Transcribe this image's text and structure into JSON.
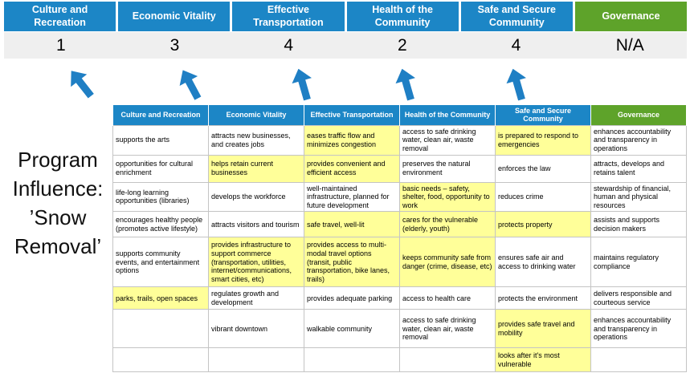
{
  "colors": {
    "blue": "#1c86c6",
    "green": "#5ea32a",
    "highlight": "#ffff99",
    "arrow": "#1f7fc4",
    "score_strip": "#efefef"
  },
  "program_label": {
    "lines": [
      "Program",
      "Influence:",
      "’Snow",
      "Removal’"
    ]
  },
  "scoreboard": {
    "columns": [
      {
        "label": "Culture and Recreation",
        "score": "1",
        "theme": "blue"
      },
      {
        "label": "Economic Vitality",
        "score": "3",
        "theme": "blue"
      },
      {
        "label": "Effective Transportation",
        "score": "4",
        "theme": "blue"
      },
      {
        "label": "Health of the Community",
        "score": "2",
        "theme": "blue"
      },
      {
        "label": "Safe and Secure Community",
        "score": "4",
        "theme": "blue"
      },
      {
        "label": "Governance",
        "score": "N/A",
        "theme": "green"
      }
    ]
  },
  "matrix": {
    "headers": [
      {
        "label": "Culture and Recreation",
        "theme": "blue"
      },
      {
        "label": "Economic Vitality",
        "theme": "blue"
      },
      {
        "label": "Effective Transportation",
        "theme": "blue"
      },
      {
        "label": "Health of the Community",
        "theme": "blue"
      },
      {
        "label": "Safe and Secure Community",
        "theme": "blue"
      },
      {
        "label": "Governance",
        "theme": "green"
      }
    ],
    "rows": [
      [
        {
          "text": "supports the arts",
          "highlight": false
        },
        {
          "text": "attracts new businesses, and creates jobs",
          "highlight": false
        },
        {
          "text": "eases traffic flow and minimizes congestion",
          "highlight": true
        },
        {
          "text": "access to safe drinking water, clean air, waste removal",
          "highlight": false
        },
        {
          "text": "is prepared to respond to emergencies",
          "highlight": true
        },
        {
          "text": "enhances accountability and transparency in operations",
          "highlight": false
        }
      ],
      [
        {
          "text": "opportunities for cultural enrichment",
          "highlight": false
        },
        {
          "text": "helps retain current businesses",
          "highlight": true
        },
        {
          "text": "provides convenient and efficient access",
          "highlight": true
        },
        {
          "text": "preserves the natural environment",
          "highlight": false
        },
        {
          "text": "enforces the law",
          "highlight": false
        },
        {
          "text": "attracts, develops and retains talent",
          "highlight": false
        }
      ],
      [
        {
          "text": "life-long learning opportunities (libraries)",
          "highlight": false
        },
        {
          "text": "develops the workforce",
          "highlight": false
        },
        {
          "text": "well-maintained infrastructure, planned for future development",
          "highlight": false
        },
        {
          "text": "basic needs – safety, shelter, food, opportunity to work",
          "highlight": true
        },
        {
          "text": "reduces crime",
          "highlight": false
        },
        {
          "text": "stewardship of financial, human and physical resources",
          "highlight": false
        }
      ],
      [
        {
          "text": "encourages healthy people (promotes active lifestyle)",
          "highlight": false
        },
        {
          "text": "attracts visitors and tourism",
          "highlight": false
        },
        {
          "text": "safe travel, well-lit",
          "highlight": true
        },
        {
          "text": "cares for the vulnerable (elderly, youth)",
          "highlight": true
        },
        {
          "text": "protects property",
          "highlight": true
        },
        {
          "text": "assists and supports decision makers",
          "highlight": false
        }
      ],
      [
        {
          "text": "supports community events, and entertainment options",
          "highlight": false
        },
        {
          "text": "provides infrastructure to support commerce (transportation, utilities, internet/communications, smart cities, etc)",
          "highlight": true
        },
        {
          "text": "provides access to multi-modal travel options (transit, public transportation, bike lanes, trails)",
          "highlight": true
        },
        {
          "text": "keeps community safe from danger (crime, disease, etc)",
          "highlight": true
        },
        {
          "text": "ensures safe air and access to drinking water",
          "highlight": false
        },
        {
          "text": "maintains regulatory compliance",
          "highlight": false
        }
      ],
      [
        {
          "text": "parks, trails, open spaces",
          "highlight": true
        },
        {
          "text": "regulates growth and development",
          "highlight": false
        },
        {
          "text": "provides adequate parking",
          "highlight": false
        },
        {
          "text": "access to health care",
          "highlight": false
        },
        {
          "text": "protects the environment",
          "highlight": false
        },
        {
          "text": "delivers responsible and courteous service",
          "highlight": false
        }
      ],
      [
        {
          "text": "",
          "highlight": false
        },
        {
          "text": "vibrant downtown",
          "highlight": false
        },
        {
          "text": "walkable community",
          "highlight": false
        },
        {
          "text": "access to safe drinking water, clean air, waste removal",
          "highlight": false
        },
        {
          "text": "provides safe travel and mobility",
          "highlight": true
        },
        {
          "text": "enhances accountability and transparency in operations",
          "highlight": false
        }
      ],
      [
        {
          "text": "",
          "highlight": false
        },
        {
          "text": "",
          "highlight": false
        },
        {
          "text": "",
          "highlight": false
        },
        {
          "text": "",
          "highlight": false
        },
        {
          "text": "looks after it's most vulnerable",
          "highlight": true
        },
        {
          "text": "",
          "highlight": false
        }
      ]
    ]
  }
}
